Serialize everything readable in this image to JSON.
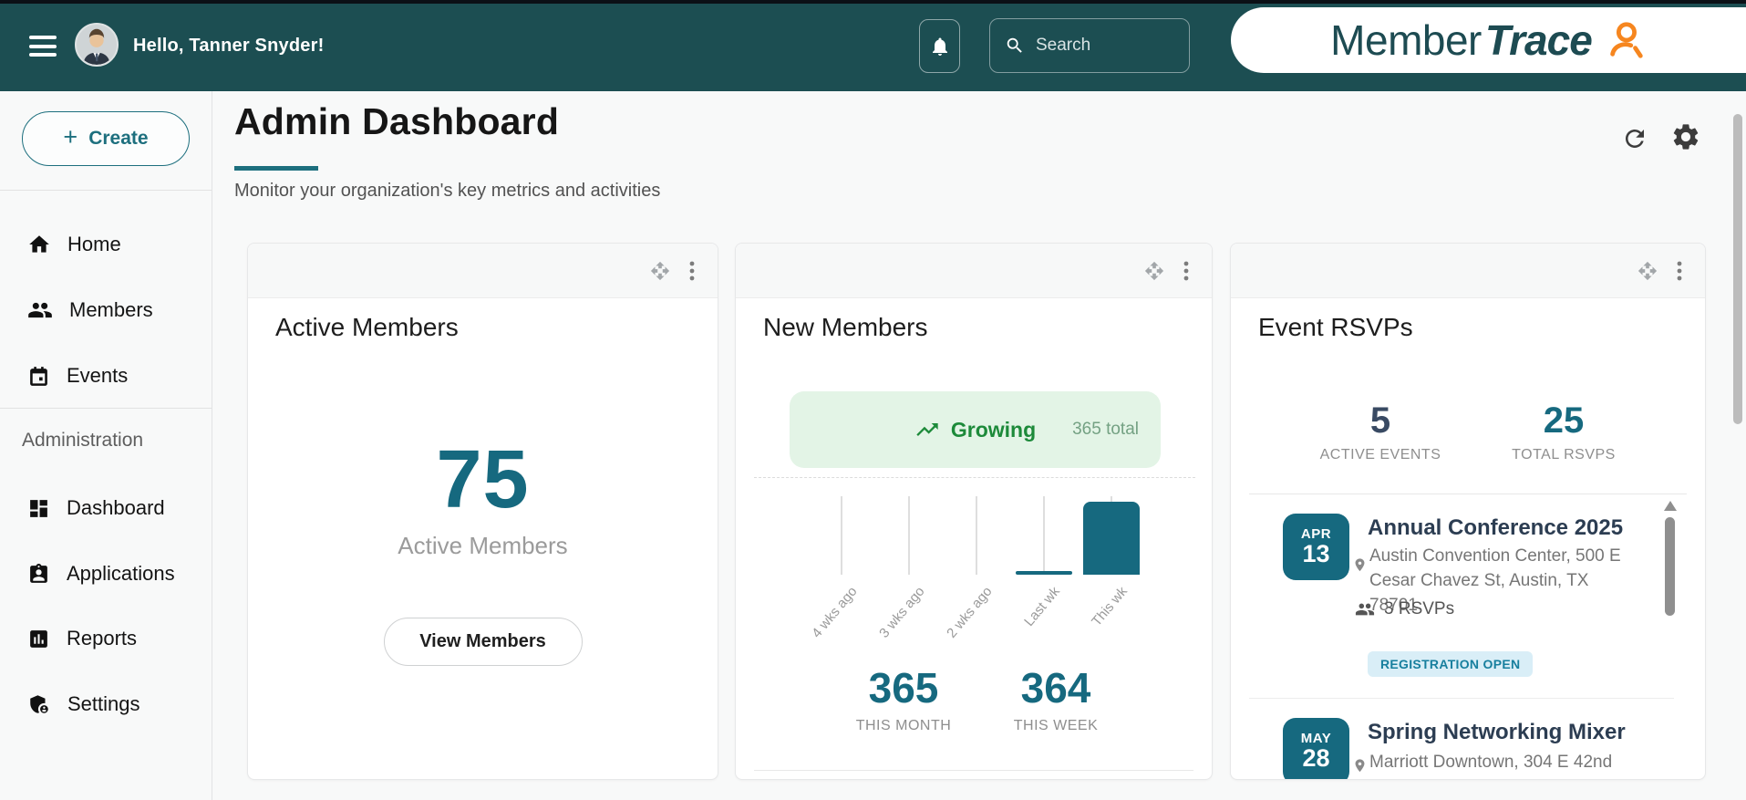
{
  "topbar": {
    "greeting": "Hello, Tanner Snyder!",
    "search_placeholder": "Search",
    "logo_part1": "Member",
    "logo_part2": "Trace",
    "colors": {
      "bar": "#1c4e52",
      "logo_text": "#1d4b52",
      "logo_icon": "#f6861f"
    }
  },
  "sidebar": {
    "create_label": "Create",
    "items": [
      {
        "label": "Home",
        "icon": "home-icon"
      },
      {
        "label": "Members",
        "icon": "people-icon"
      },
      {
        "label": "Events",
        "icon": "calendar-icon"
      }
    ],
    "section_label": "Administration",
    "admin_items": [
      {
        "label": "Dashboard",
        "icon": "dashboard-icon"
      },
      {
        "label": "Applications",
        "icon": "badge-icon"
      },
      {
        "label": "Reports",
        "icon": "bar-chart-icon"
      },
      {
        "label": "Settings",
        "icon": "shield-gear-icon"
      }
    ]
  },
  "header": {
    "title": "Admin Dashboard",
    "subtitle": "Monitor your organization's key metrics and activities"
  },
  "cards": {
    "active_members": {
      "title": "Active Members",
      "value": "75",
      "caption": "Active Members",
      "button_label": "View Members",
      "accent_color": "#16697f"
    },
    "new_members": {
      "title": "New Members",
      "badge_label": "Growing",
      "badge_total": "365 total",
      "chart_data": {
        "type": "bar",
        "categories": [
          "4 wks ago",
          "3 wks ago",
          "2 wks ago",
          "Last wk",
          "This wk"
        ],
        "values": [
          0,
          0,
          0,
          1,
          364
        ],
        "title": "",
        "xlabel": "",
        "ylabel": "",
        "ylim": [
          0,
          364
        ],
        "bar_color": "#16697f",
        "grid": "vertical-guides"
      },
      "stats": [
        {
          "value": "365",
          "label": "THIS MONTH"
        },
        {
          "value": "364",
          "label": "THIS WEEK"
        }
      ]
    },
    "event_rsvps": {
      "title": "Event RSVPs",
      "stats": [
        {
          "value": "5",
          "label": "ACTIVE EVENTS"
        },
        {
          "value": "25",
          "label": "TOTAL RSVPS"
        }
      ],
      "events": [
        {
          "month": "APR",
          "day": "13",
          "title": "Annual Conference 2025",
          "location": "Austin Convention Center, 500 E Cesar Chavez St, Austin, TX 78701",
          "rsvps": "3 RSVPs",
          "badge": "REGISTRATION OPEN"
        },
        {
          "month": "MAY",
          "day": "28",
          "title": "Spring Networking Mixer",
          "location": "Marriott Downtown, 304 E 42nd"
        }
      ]
    }
  }
}
